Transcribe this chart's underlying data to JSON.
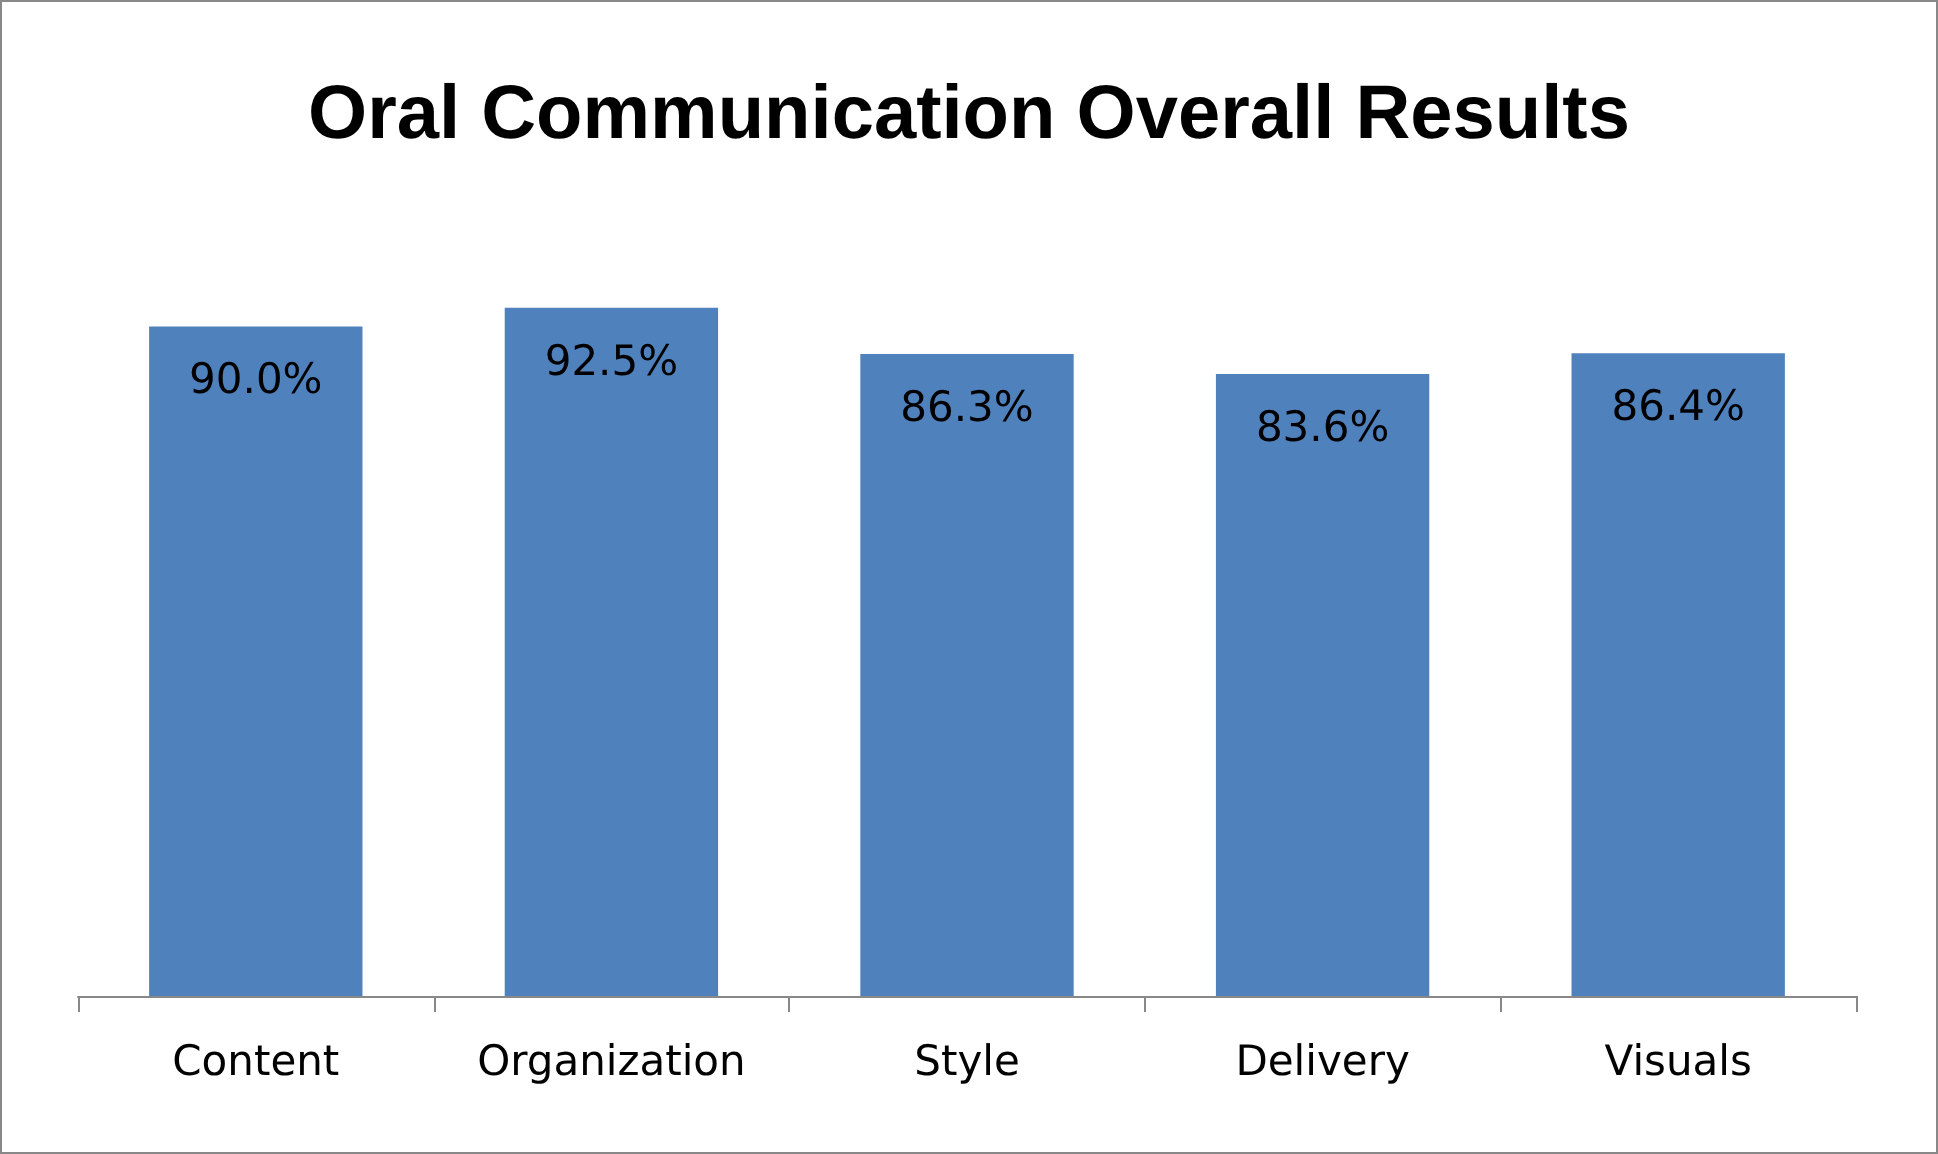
{
  "chart_data": {
    "type": "bar",
    "title": "Oral Communication Overall Results",
    "categories": [
      "Content",
      "Organization",
      "Style",
      "Delivery",
      "Visuals"
    ],
    "values": [
      90.0,
      92.5,
      86.3,
      83.6,
      86.4
    ],
    "value_labels": [
      "90.0%",
      "92.5%",
      "86.3%",
      "83.6%",
      "86.4%"
    ],
    "color": "#4f81bd"
  }
}
